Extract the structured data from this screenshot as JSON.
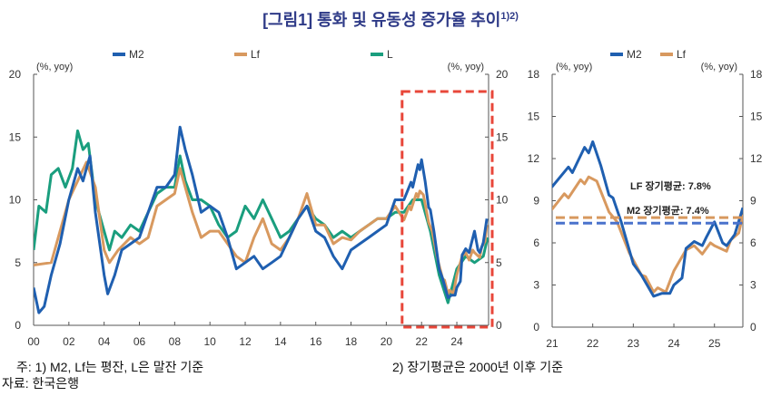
{
  "title": "[그림1] 통화 및 유동성 증가율 추이",
  "title_sup": "1)2)",
  "colors": {
    "M2": "#1f5fb0",
    "Lf": "#d8995f",
    "L": "#1a9e7e",
    "highlight_box": "#e8473a",
    "m2_avg": "#4a72cc"
  },
  "footnotes": {
    "note1": "주: 1) M2, Lf는 평잔, L은 말잔 기준",
    "note2": "2) 장기평균은 2000년 이후 기준",
    "source": "자료: 한국은행"
  },
  "chart_data": [
    {
      "type": "line",
      "title": "",
      "ylabel_left": "(%, yoy)",
      "ylabel_right": "(%, yoy)",
      "xlim": [
        2000,
        2025.8
      ],
      "ylim": [
        0,
        20
      ],
      "yticks": [
        "0",
        "5",
        "10",
        "15",
        "20"
      ],
      "xticks": [
        {
          "x": 2000,
          "label": "00"
        },
        {
          "x": 2002,
          "label": "02"
        },
        {
          "x": 2004,
          "label": "04"
        },
        {
          "x": 2006,
          "label": "06"
        },
        {
          "x": 2008,
          "label": "08"
        },
        {
          "x": 2010,
          "label": "10"
        },
        {
          "x": 2012,
          "label": "12"
        },
        {
          "x": 2014,
          "label": "14"
        },
        {
          "x": 2016,
          "label": "16"
        },
        {
          "x": 2018,
          "label": "18"
        },
        {
          "x": 2020,
          "label": "20"
        },
        {
          "x": 2022,
          "label": "22"
        },
        {
          "x": 2024,
          "label": "24"
        }
      ],
      "legend": [
        "M2",
        "Lf",
        "L"
      ],
      "legend_placement": "top",
      "highlight_range": [
        2021,
        2025.8
      ],
      "series": [
        {
          "name": "M2",
          "points": [
            [
              2000,
              3
            ],
            [
              2000.3,
              1
            ],
            [
              2000.6,
              1.5
            ],
            [
              2001,
              4
            ],
            [
              2001.5,
              6.5
            ],
            [
              2002,
              10
            ],
            [
              2002.5,
              12.5
            ],
            [
              2002.8,
              11.5
            ],
            [
              2003.2,
              13.5
            ],
            [
              2003.5,
              9
            ],
            [
              2004,
              4
            ],
            [
              2004.2,
              2.5
            ],
            [
              2004.6,
              4
            ],
            [
              2005,
              6
            ],
            [
              2005.5,
              6.5
            ],
            [
              2006,
              7
            ],
            [
              2006.5,
              9
            ],
            [
              2007,
              11
            ],
            [
              2007.5,
              11
            ],
            [
              2008,
              12
            ],
            [
              2008.3,
              15.8
            ],
            [
              2008.6,
              14
            ],
            [
              2009,
              12
            ],
            [
              2009.5,
              9
            ],
            [
              2010,
              9.5
            ],
            [
              2010.5,
              9
            ],
            [
              2011,
              7
            ],
            [
              2011.5,
              4.5
            ],
            [
              2012,
              5
            ],
            [
              2012.5,
              5.5
            ],
            [
              2013,
              4.5
            ],
            [
              2013.5,
              5
            ],
            [
              2014,
              5.5
            ],
            [
              2014.5,
              7
            ],
            [
              2015,
              8.5
            ],
            [
              2015.5,
              9.5
            ],
            [
              2016,
              7.5
            ],
            [
              2016.5,
              7
            ],
            [
              2017,
              5.5
            ],
            [
              2017.5,
              4.5
            ],
            [
              2018,
              6
            ],
            [
              2018.5,
              6.5
            ],
            [
              2019,
              7
            ],
            [
              2019.5,
              7.5
            ],
            [
              2020,
              8
            ],
            [
              2020.5,
              10
            ],
            [
              2021,
              10
            ],
            [
              2021.4,
              11.4
            ],
            [
              2021.5,
              11
            ],
            [
              2021.8,
              12.8
            ],
            [
              2021.9,
              12.4
            ],
            [
              2022,
              13.2
            ],
            [
              2022.2,
              11.5
            ],
            [
              2022.4,
              9.4
            ],
            [
              2022.5,
              9.2
            ],
            [
              2022.7,
              7.5
            ],
            [
              2023,
              4.5
            ],
            [
              2023.2,
              3.7
            ],
            [
              2023.5,
              2.2
            ],
            [
              2023.7,
              2.4
            ],
            [
              2023.9,
              2.4
            ],
            [
              2024,
              3
            ],
            [
              2024.2,
              3.5
            ],
            [
              2024.3,
              5.6
            ],
            [
              2024.5,
              6.1
            ],
            [
              2024.7,
              5.8
            ],
            [
              2024.8,
              6.4
            ],
            [
              2025,
              7.5
            ],
            [
              2025.2,
              6
            ],
            [
              2025.3,
              5.8
            ],
            [
              2025.5,
              6.6
            ],
            [
              2025.7,
              8.5
            ]
          ]
        },
        {
          "name": "Lf",
          "points": [
            [
              2000,
              4.8
            ],
            [
              2001,
              5
            ],
            [
              2001.5,
              7.5
            ],
            [
              2002,
              10
            ],
            [
              2002.5,
              11.5
            ],
            [
              2003,
              13
            ],
            [
              2003.5,
              11
            ],
            [
              2004,
              6
            ],
            [
              2004.3,
              5
            ],
            [
              2004.8,
              6
            ],
            [
              2005.5,
              7
            ],
            [
              2006,
              6.5
            ],
            [
              2006.5,
              7
            ],
            [
              2007,
              9.5
            ],
            [
              2007.5,
              10
            ],
            [
              2008,
              10.5
            ],
            [
              2008.3,
              12.5
            ],
            [
              2008.6,
              11
            ],
            [
              2009,
              9
            ],
            [
              2009.5,
              7
            ],
            [
              2010,
              7.5
            ],
            [
              2010.5,
              7.5
            ],
            [
              2011,
              6.5
            ],
            [
              2011.5,
              5.5
            ],
            [
              2012,
              5
            ],
            [
              2012.5,
              7
            ],
            [
              2013,
              8.5
            ],
            [
              2013.5,
              6.5
            ],
            [
              2014,
              6
            ],
            [
              2014.5,
              7
            ],
            [
              2015,
              8.5
            ],
            [
              2015.5,
              10.5
            ],
            [
              2016,
              8
            ],
            [
              2016.5,
              8
            ],
            [
              2017,
              6.5
            ],
            [
              2017.5,
              7
            ],
            [
              2018,
              6.8
            ],
            [
              2018.5,
              7.5
            ],
            [
              2019,
              8
            ],
            [
              2019.5,
              8.5
            ],
            [
              2020,
              8.5
            ],
            [
              2020.5,
              9.5
            ],
            [
              2021,
              8.4
            ],
            [
              2021.3,
              9.5
            ],
            [
              2021.4,
              9.2
            ],
            [
              2021.7,
              10.5
            ],
            [
              2021.8,
              10.2
            ],
            [
              2021.9,
              10.7
            ],
            [
              2022.1,
              10.4
            ],
            [
              2022.4,
              8.2
            ],
            [
              2022.6,
              7.5
            ],
            [
              2022.9,
              5.3
            ],
            [
              2023.2,
              3.7
            ],
            [
              2023.3,
              3.6
            ],
            [
              2023.5,
              2.5
            ],
            [
              2023.6,
              2.8
            ],
            [
              2023.8,
              2.5
            ],
            [
              2024,
              4
            ],
            [
              2024.3,
              5.5
            ],
            [
              2024.5,
              5.8
            ],
            [
              2024.7,
              5.2
            ],
            [
              2024.9,
              6
            ],
            [
              2025,
              5.8
            ],
            [
              2025.3,
              5.4
            ],
            [
              2025.4,
              6.2
            ],
            [
              2025.6,
              6.7
            ],
            [
              2025.7,
              8
            ]
          ]
        },
        {
          "name": "L",
          "points": [
            [
              2000,
              6
            ],
            [
              2000.3,
              9.5
            ],
            [
              2000.7,
              9
            ],
            [
              2001,
              12
            ],
            [
              2001.4,
              12.5
            ],
            [
              2001.8,
              11
            ],
            [
              2002.2,
              12.5
            ],
            [
              2002.5,
              15.5
            ],
            [
              2002.8,
              14
            ],
            [
              2003.1,
              14.5
            ],
            [
              2003.5,
              10
            ],
            [
              2004,
              7.5
            ],
            [
              2004.3,
              6
            ],
            [
              2004.6,
              7.5
            ],
            [
              2005,
              7
            ],
            [
              2005.5,
              8
            ],
            [
              2006,
              7.5
            ],
            [
              2006.5,
              9
            ],
            [
              2007,
              10.5
            ],
            [
              2007.5,
              11
            ],
            [
              2008,
              11
            ],
            [
              2008.3,
              13.5
            ],
            [
              2008.6,
              11.5
            ],
            [
              2009,
              10
            ],
            [
              2009.5,
              10
            ],
            [
              2010,
              9.5
            ],
            [
              2010.5,
              8
            ],
            [
              2011,
              7
            ],
            [
              2011.5,
              7.5
            ],
            [
              2012,
              9.5
            ],
            [
              2012.5,
              8.5
            ],
            [
              2013,
              10
            ],
            [
              2013.5,
              8.5
            ],
            [
              2014,
              7
            ],
            [
              2014.5,
              7.5
            ],
            [
              2015,
              8.5
            ],
            [
              2015.5,
              9.5
            ],
            [
              2016,
              8.5
            ],
            [
              2016.5,
              8
            ],
            [
              2017,
              7
            ],
            [
              2017.5,
              7.5
            ],
            [
              2018,
              7
            ],
            [
              2018.5,
              7.5
            ],
            [
              2019,
              8
            ],
            [
              2019.5,
              8.5
            ],
            [
              2020,
              8.5
            ],
            [
              2020.5,
              9
            ],
            [
              2021,
              9
            ],
            [
              2021.5,
              10
            ],
            [
              2022,
              10
            ],
            [
              2022.5,
              7.5
            ],
            [
              2023,
              4
            ],
            [
              2023.5,
              1.8
            ],
            [
              2024,
              4.5
            ],
            [
              2024.5,
              5.5
            ],
            [
              2025,
              5
            ],
            [
              2025.5,
              5.5
            ],
            [
              2025.75,
              7
            ]
          ]
        }
      ]
    },
    {
      "type": "line",
      "title": "",
      "ylabel_left": "(%, yoy)",
      "ylabel_right": "(%, yoy)",
      "xlim": [
        2021,
        2025.7
      ],
      "ylim": [
        0,
        18
      ],
      "yticks": [
        "0",
        "3",
        "6",
        "9",
        "12",
        "15",
        "18"
      ],
      "xticks": [
        {
          "x": 2021,
          "label": "21"
        },
        {
          "x": 2022,
          "label": "22"
        },
        {
          "x": 2023,
          "label": "23"
        },
        {
          "x": 2024,
          "label": "24"
        },
        {
          "x": 2025,
          "label": "25"
        }
      ],
      "legend": [
        "M2",
        "Lf"
      ],
      "legend_placement": "top",
      "series_ref": [
        "M2",
        "Lf"
      ],
      "reference_lines": [
        {
          "name": "Lf",
          "value": 7.8,
          "label": "LF 장기평균: 7.8%",
          "style": "dashed"
        },
        {
          "name": "M2",
          "value": 7.4,
          "label": "M2 장기평균: 7.4%",
          "style": "dashed"
        }
      ]
    }
  ]
}
